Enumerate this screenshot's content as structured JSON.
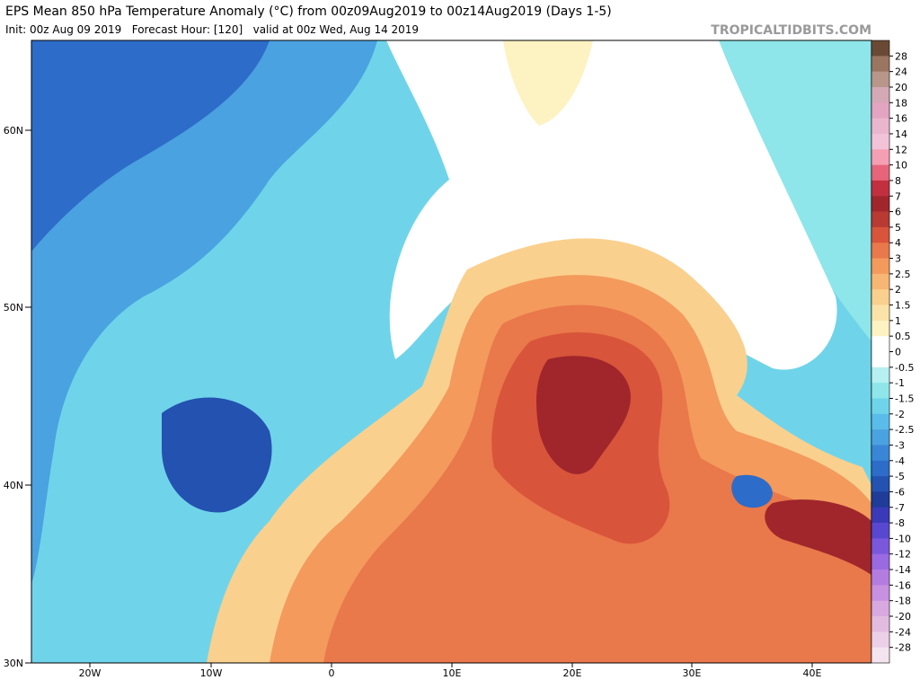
{
  "header": {
    "title": "EPS Mean 850 hPa Temperature Anomaly (°C) from 00z09Aug2019 to 00z14Aug2019 (Days 1-5)",
    "subtitle": "Init: 00z Aug 09 2019   Forecast Hour: [120]   valid at 00z Wed, Aug 14 2019",
    "brand": "TROPICALTIDBITS.COM"
  },
  "map": {
    "lat_labels": [
      "60N",
      "50N",
      "40N",
      "30N"
    ],
    "lon_labels": [
      "20W",
      "10W",
      "0",
      "10E",
      "20E",
      "30E",
      "40E"
    ]
  },
  "colorbar": {
    "labels": [
      "28",
      "24",
      "20",
      "18",
      "16",
      "14",
      "12",
      "10",
      "8",
      "7",
      "6",
      "5",
      "4",
      "3",
      "2.5",
      "2",
      "1.5",
      "1",
      "0.5",
      "0",
      "-0.5",
      "-1",
      "-1.5",
      "-2",
      "-2.5",
      "-3",
      "-4",
      "-5",
      "-6",
      "-7",
      "-8",
      "-10",
      "-12",
      "-14",
      "-16",
      "-18",
      "-20",
      "-24",
      "-28"
    ],
    "colors": [
      "#6b4a35",
      "#9a7560",
      "#b8968a",
      "#d4a9b5",
      "#e2a4c0",
      "#eab6cd",
      "#f2c3d8",
      "#f59fb4",
      "#e6657a",
      "#c23040",
      "#a0262c",
      "#b83a33",
      "#d8543a",
      "#e9784a",
      "#f39a5c",
      "#f7b674",
      "#fad08e",
      "#fbe3a8",
      "#fdf2c2",
      "#ffffff",
      "#ffffff",
      "#b6f0f0",
      "#8ee6ea",
      "#6fd4ea",
      "#5abce8",
      "#4aa2e0",
      "#3a86d6",
      "#2d6cc8",
      "#2452b0",
      "#1e3c98",
      "#3a3ab8",
      "#5848d0",
      "#7a58dc",
      "#9a6ae0",
      "#b47ce0",
      "#c890e0",
      "#d8a8e0",
      "#e2bce0",
      "#ecd0e8",
      "#f4e4f0"
    ]
  }
}
